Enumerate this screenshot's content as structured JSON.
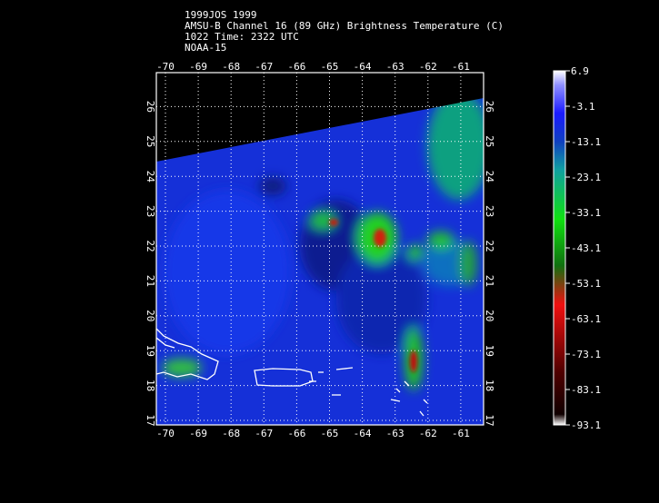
{
  "header": {
    "lines": [
      "1999JOS 1999",
      "AMSU-B Channel 16 (89 GHz) Brightness Temperature (C)",
      "1022 Time: 2322 UTC",
      "NOAA-15"
    ]
  },
  "map": {
    "lon_ticks": [
      -70,
      -69,
      -68,
      -67,
      -66,
      -65,
      -64,
      -63,
      -62,
      -61
    ],
    "lat_ticks": [
      17,
      18,
      19,
      20,
      21,
      22,
      23,
      24,
      25,
      26
    ],
    "colorbar_ticks": [
      6.9,
      -3.1,
      -13.1,
      -23.1,
      -33.1,
      -43.1,
      -53.1,
      -63.1,
      -73.1,
      -83.1,
      -93.1
    ]
  }
}
